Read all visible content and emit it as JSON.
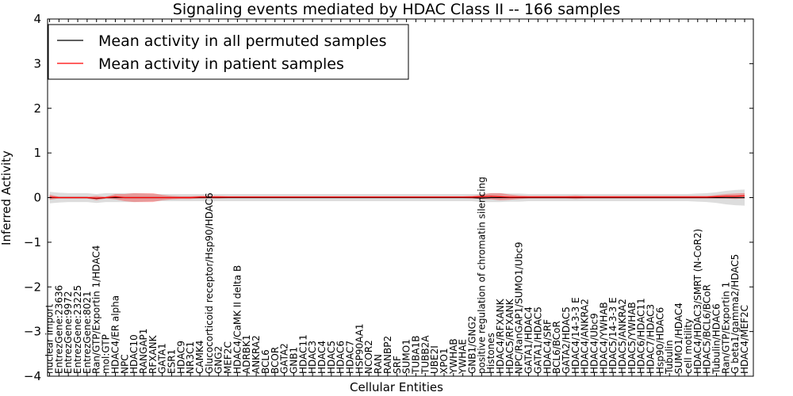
{
  "chart_data": {
    "type": "line",
    "title": "Signaling events mediated by HDAC Class II -- 166 samples",
    "xlabel": "Cellular Entities",
    "ylabel": "Inferred Activity",
    "ylim": [
      -4,
      4
    ],
    "yticks": [
      -4,
      -3,
      -2,
      -1,
      0,
      1,
      2,
      3,
      4
    ],
    "ytick_labels": [
      "−4",
      "−3",
      "−2",
      "−1",
      "0",
      "1",
      "2",
      "3",
      "4"
    ],
    "grid": false,
    "legend_position": "top-left",
    "categories": [
      "nuclear import",
      "EntrezGene:23636",
      "EntrezGene:9972",
      "EntrezGene:23225",
      "EntrezGene:8021",
      "Ran/GTP/Exportin 1/HDAC4",
      "mol:GTP",
      "HDAC4/ER alpha",
      "NPC",
      "HDAC10",
      "RANGAP1",
      "RFXANK",
      "GATA1",
      "ESR1",
      "HDAC9",
      "NR3C1",
      "CAMK4",
      "Glucocorticoid receptor/Hsp90/HDAC6",
      "GNG2",
      "MEF2C",
      "HDAC4/CaMK II delta B",
      "ADRBK1",
      "ANKRA2",
      "BCL6",
      "BCOR",
      "GATA2",
      "GNB1",
      "HDAC11",
      "HDAC3",
      "HDAC4",
      "HDAC5",
      "HDAC6",
      "HDAC7",
      "HSP90AA1",
      "NCOR2",
      "RAN",
      "RANBP2",
      "SRF",
      "SUMO1",
      "TUBA1B",
      "TUBB2A",
      "UBE2I",
      "XPO1",
      "YWHAB",
      "YWHAE",
      "GNB1/GNG2",
      "positive regulation of chromatin silencing",
      "Histones",
      "HDAC4/RFXANK",
      "HDAC5/RFXANK",
      "NPC/RanGAP1/SUMO1/Ubc9",
      "GATA1/HDAC4",
      "GATA1/HDAC5",
      "HDAC4/SRF",
      "BCL6/BCoR",
      "GATA2/HDAC5",
      "HDAC4/14-3-3 E",
      "HDAC4/ANKRA2",
      "HDAC4/Ubc9",
      "HDAC4/YWHAB",
      "HDAC5/14-3-3 E",
      "HDAC5/ANKRA2",
      "HDAC5/YWHAB",
      "HDAC6/HDAC11",
      "HDAC7/HDAC3",
      "Hsp90/HDAC6",
      "Tubulin",
      "SUMO1/HDAC4",
      "cell motility",
      "HDAC4/HDAC3/SMRT (N-CoR2)",
      "HDAC5/BCL6/BCoR",
      "Tubulin/HDAC6",
      "Ran/GTP/Exportin 1",
      "G beta1/gamma2/HDAC5",
      "HDAC4/MEF2C"
    ],
    "series": [
      {
        "name": "Mean activity in all permuted samples",
        "color": "#000000",
        "values": [
          0.0,
          0.0,
          0.0,
          0.0,
          0.0,
          -0.02,
          0.0,
          0.0,
          0.0,
          0.0,
          0.0,
          0.0,
          0.0,
          0.0,
          0.0,
          0.0,
          0.0,
          0.0,
          0.0,
          0.0,
          0.0,
          0.0,
          0.0,
          0.0,
          0.0,
          0.0,
          0.0,
          0.0,
          0.0,
          0.0,
          0.0,
          0.0,
          0.0,
          0.0,
          0.0,
          0.0,
          0.0,
          0.0,
          0.0,
          0.0,
          0.0,
          0.0,
          0.0,
          0.0,
          0.0,
          0.0,
          -0.01,
          0.0,
          0.0,
          0.0,
          0.0,
          0.0,
          0.0,
          0.0,
          0.0,
          0.0,
          0.0,
          0.0,
          0.0,
          0.0,
          0.0,
          0.0,
          0.0,
          0.0,
          0.0,
          0.0,
          0.0,
          0.0,
          0.0,
          0.0,
          0.0,
          0.0,
          0.0,
          0.0,
          0.0
        ]
      },
      {
        "name": "Mean activity in patient samples",
        "color": "#ff0000",
        "values": [
          0.01,
          0.0,
          0.0,
          0.0,
          0.0,
          -0.01,
          0.0,
          0.02,
          0.0,
          0.0,
          0.0,
          0.0,
          0.0,
          0.0,
          0.0,
          0.0,
          0.01,
          0.01,
          0.01,
          0.01,
          0.01,
          0.01,
          0.01,
          0.01,
          0.01,
          0.01,
          0.01,
          0.01,
          0.01,
          0.01,
          0.01,
          0.01,
          0.01,
          0.01,
          0.01,
          0.01,
          0.01,
          0.01,
          0.01,
          0.01,
          0.01,
          0.01,
          0.01,
          0.01,
          0.01,
          0.01,
          0.02,
          0.03,
          0.02,
          0.01,
          0.01,
          0.01,
          0.01,
          0.01,
          0.01,
          0.01,
          0.01,
          0.01,
          0.01,
          0.01,
          0.01,
          0.01,
          0.01,
          0.01,
          0.01,
          0.01,
          0.01,
          0.01,
          0.01,
          0.01,
          0.01,
          0.02,
          0.03,
          0.03,
          0.04
        ]
      }
    ],
    "permuted_band": [
      0.13,
      0.11,
      0.1,
      0.1,
      0.1,
      0.1,
      0.1,
      0.1,
      0.1,
      0.1,
      0.09,
      0.08,
      0.08,
      0.08,
      0.08,
      0.08,
      0.08,
      0.08,
      0.08,
      0.08,
      0.08,
      0.08,
      0.08,
      0.08,
      0.08,
      0.08,
      0.08,
      0.08,
      0.08,
      0.08,
      0.08,
      0.08,
      0.08,
      0.08,
      0.08,
      0.08,
      0.08,
      0.08,
      0.08,
      0.08,
      0.08,
      0.08,
      0.08,
      0.08,
      0.08,
      0.08,
      0.09,
      0.1,
      0.1,
      0.09,
      0.09,
      0.08,
      0.08,
      0.08,
      0.08,
      0.08,
      0.08,
      0.08,
      0.08,
      0.08,
      0.08,
      0.08,
      0.08,
      0.08,
      0.08,
      0.08,
      0.08,
      0.08,
      0.08,
      0.09,
      0.1,
      0.12,
      0.15,
      0.17,
      0.18
    ],
    "patient_band": [
      0.06,
      0.02,
      0.02,
      0.02,
      0.02,
      0.05,
      0.02,
      0.06,
      0.08,
      0.1,
      0.1,
      0.1,
      0.06,
      0.04,
      0.03,
      0.03,
      0.03,
      0.03,
      0.03,
      0.02,
      0.02,
      0.02,
      0.02,
      0.02,
      0.02,
      0.02,
      0.02,
      0.02,
      0.02,
      0.02,
      0.02,
      0.02,
      0.02,
      0.02,
      0.02,
      0.02,
      0.02,
      0.02,
      0.02,
      0.02,
      0.02,
      0.02,
      0.02,
      0.02,
      0.02,
      0.03,
      0.05,
      0.07,
      0.08,
      0.06,
      0.04,
      0.03,
      0.03,
      0.03,
      0.03,
      0.03,
      0.04,
      0.03,
      0.03,
      0.03,
      0.03,
      0.03,
      0.03,
      0.03,
      0.03,
      0.03,
      0.03,
      0.03,
      0.03,
      0.03,
      0.03,
      0.04,
      0.05,
      0.06,
      0.06
    ]
  }
}
